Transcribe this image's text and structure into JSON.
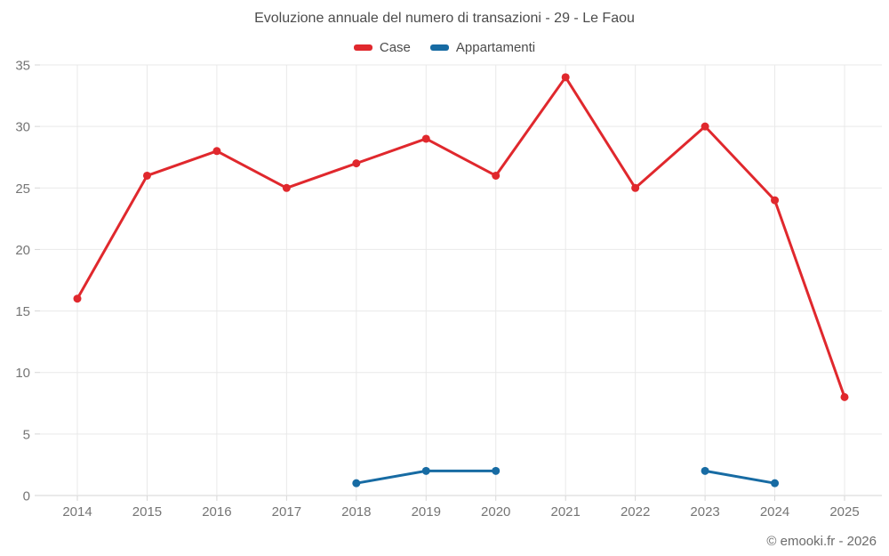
{
  "footer": {
    "credit": "© emooki.fr - 2026"
  },
  "chart_data": {
    "type": "line",
    "title": "Evoluzione annuale del numero di transazioni - 29 - Le Faou",
    "x": [
      2014,
      2015,
      2016,
      2017,
      2018,
      2019,
      2020,
      2021,
      2022,
      2023,
      2024,
      2025
    ],
    "xlabel": "",
    "ylabel": "",
    "ylim": [
      0,
      35
    ],
    "yticks": [
      0,
      5,
      10,
      15,
      20,
      25,
      30,
      35
    ],
    "grid": true,
    "legend_position": "top",
    "series": [
      {
        "name": "Case",
        "color": "#e0282d",
        "values": [
          16,
          26,
          28,
          25,
          27,
          29,
          26,
          34,
          25,
          30,
          24,
          8
        ]
      },
      {
        "name": "Appartamenti",
        "color": "#176ba3",
        "values": [
          null,
          null,
          null,
          null,
          1,
          2,
          2,
          null,
          null,
          2,
          1,
          null
        ]
      }
    ]
  }
}
